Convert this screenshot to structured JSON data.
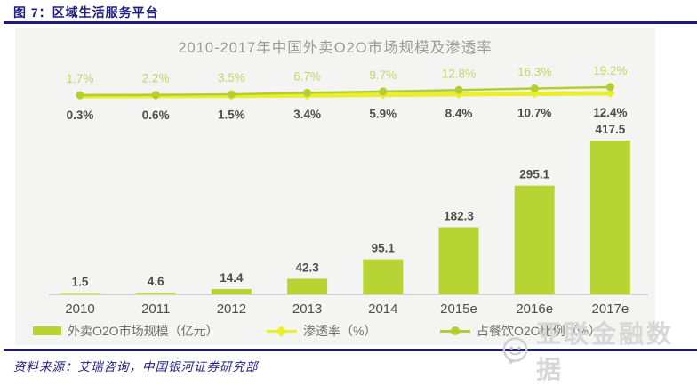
{
  "figure": {
    "header": "图 7：区域生活服务平台",
    "source": "资料来源：艾瑞咨询，中国银河证券研究部"
  },
  "watermark": {
    "text": "亚联金融数据"
  },
  "colors": {
    "navy": "#1e1b7e",
    "bar": "#b8d434",
    "penetration_line": "#e9ef2f",
    "ratio_line": "#b6cd31",
    "ratio_label": "#c3d566",
    "dark_label": "#4d4d4d",
    "title_gray": "#9b9b9b",
    "panel_bg": "#f4f4f2"
  },
  "chart_data": {
    "type": "bar",
    "title": "2010-2017年中国外卖O2O市场规模及渗透率",
    "categories": [
      "2010",
      "2011",
      "2012",
      "2013",
      "2014",
      "2015e",
      "2016e",
      "2017e"
    ],
    "series": [
      {
        "name": "外卖O2O市场规模（亿元）",
        "type": "bar",
        "values": [
          1.5,
          4.6,
          14.4,
          42.3,
          95.1,
          182.3,
          295.1,
          417.5
        ],
        "color": "#b8d434"
      },
      {
        "name": "渗透率（%）",
        "type": "line",
        "values": [
          0.3,
          0.6,
          1.5,
          3.4,
          5.9,
          8.4,
          10.7,
          12.4
        ],
        "color": "#e9ef2f"
      },
      {
        "name": "占餐饮O2O比例（%）",
        "type": "line",
        "values": [
          1.7,
          2.2,
          3.5,
          6.7,
          9.7,
          12.8,
          16.3,
          19.2
        ],
        "color": "#b6cd31"
      }
    ],
    "xlabel": "",
    "ylabel": "",
    "ylim": [
      0,
      450
    ],
    "grid": false,
    "legend_position": "bottom"
  }
}
